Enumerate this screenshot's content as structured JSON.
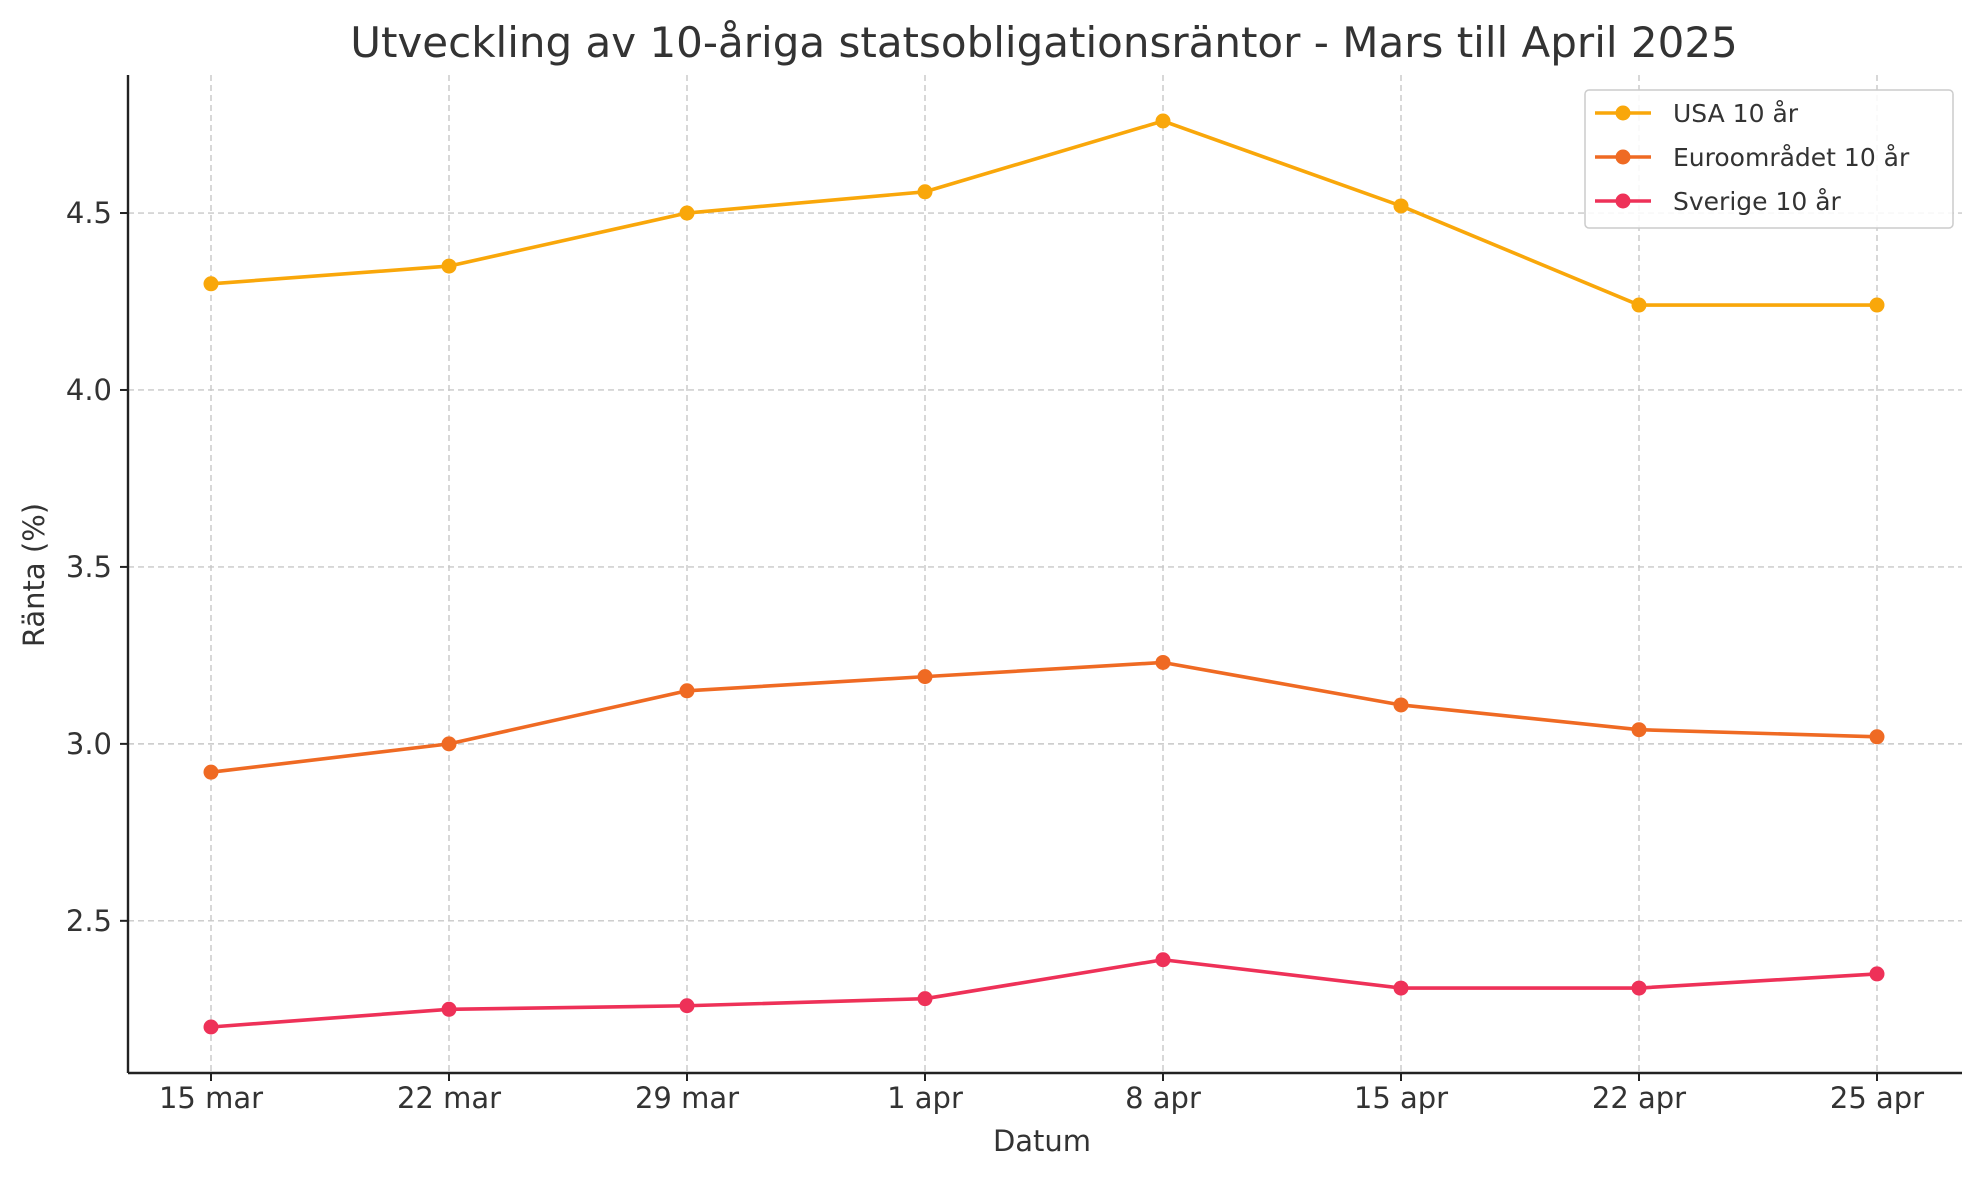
{
  "chart_data": {
    "type": "line",
    "title": "Utveckling av 10-åriga statsobligationsräntor - Mars till April 2025",
    "xlabel": "Datum",
    "ylabel": "Ränta (%)",
    "categories": [
      "15 mar",
      "22 mar",
      "29 mar",
      "1 apr",
      "8 apr",
      "15 apr",
      "22 apr",
      "25 apr"
    ],
    "ylim": [
      2.07,
      4.89
    ],
    "yticks": [
      2.5,
      3.0,
      3.5,
      4.0,
      4.5
    ],
    "ytick_labels": [
      "2.5",
      "3.0",
      "3.5",
      "4.0",
      "4.5"
    ],
    "grid": true,
    "legend_position": "top-right",
    "series": [
      {
        "name": "USA 10 år",
        "color": "#f9a70a",
        "values": [
          4.3,
          4.35,
          4.5,
          4.56,
          4.76,
          4.52,
          4.24,
          4.24
        ]
      },
      {
        "name": "Euroområdet 10 år",
        "color": "#ef6a23",
        "values": [
          2.92,
          3.0,
          3.15,
          3.19,
          3.23,
          3.11,
          3.04,
          3.02
        ]
      },
      {
        "name": "Sverige 10 år",
        "color": "#ee3158",
        "values": [
          2.2,
          2.25,
          2.26,
          2.28,
          2.39,
          2.31,
          2.31,
          2.35
        ]
      }
    ]
  }
}
